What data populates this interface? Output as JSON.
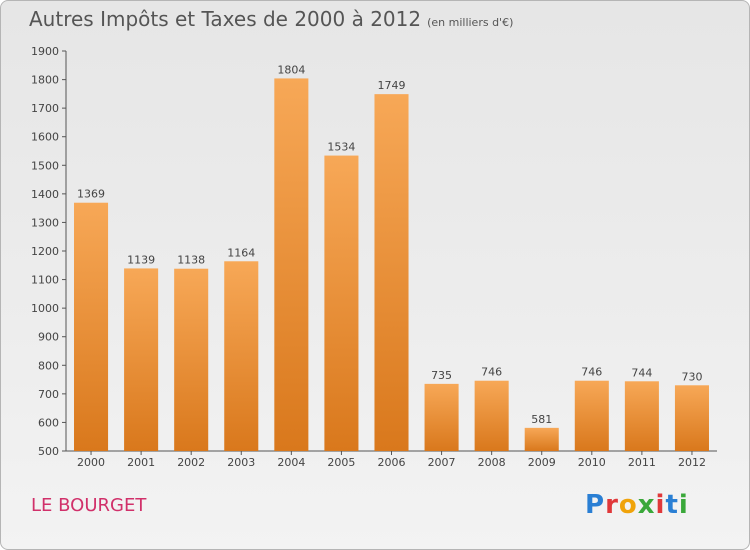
{
  "title": "Autres Impôts et Taxes de 2000 à 2012",
  "unit": "(en milliers d'€)",
  "commune": "LE BOURGET",
  "brand": "Proxiti",
  "colors": {
    "bar_top": "#f7a857",
    "bar_bottom": "#d9781c",
    "axis": "#555555",
    "commune": "#d1306a"
  },
  "chart_data": {
    "type": "bar",
    "categories": [
      "2000",
      "2001",
      "2002",
      "2003",
      "2004",
      "2005",
      "2006",
      "2007",
      "2008",
      "2009",
      "2010",
      "2011",
      "2012"
    ],
    "values": [
      1369,
      1139,
      1138,
      1164,
      1804,
      1534,
      1749,
      735,
      746,
      581,
      746,
      744,
      730
    ],
    "ylim": [
      500,
      1900
    ],
    "yticks": [
      500,
      600,
      700,
      800,
      900,
      1000,
      1100,
      1200,
      1300,
      1400,
      1500,
      1600,
      1700,
      1800,
      1900
    ],
    "data_labels": true,
    "grid": false
  }
}
